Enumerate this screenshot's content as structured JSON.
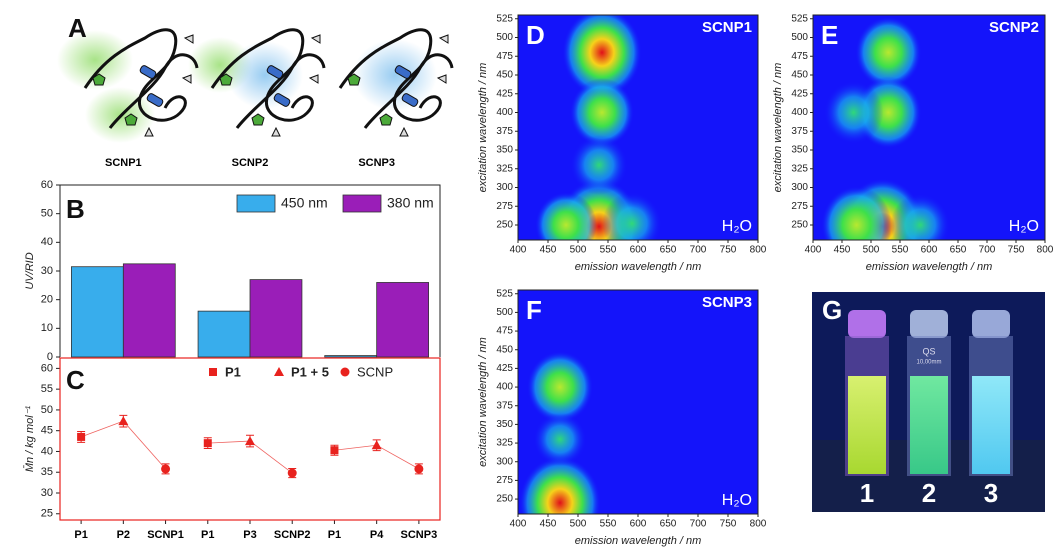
{
  "panel_a": {
    "label": "A"
  },
  "chart_data": [
    {
      "type": "bar",
      "panel": "B",
      "ylabel": "UV/RID",
      "categories": [
        "SCNP1",
        "SCNP2",
        "SCNP3"
      ],
      "series": [
        {
          "name": "450 nm",
          "color": "#38adec",
          "values": [
            31.5,
            16,
            0.5
          ]
        },
        {
          "name": "380 nm",
          "color": "#9a1eb8",
          "values": [
            32.5,
            27,
            26
          ]
        }
      ],
      "ylim": [
        0,
        60
      ],
      "yticks": [
        0,
        10,
        20,
        30,
        40,
        50,
        60
      ],
      "legend": "top-right"
    },
    {
      "type": "errorscatter",
      "panel": "C",
      "ylabel": "M̄n / kg mol⁻¹",
      "color": "#e8221e",
      "categories": [
        "P1",
        "P2",
        "SCNP1",
        "P1",
        "P3",
        "SCNP2",
        "P1",
        "P4",
        "SCNP3"
      ],
      "series": [
        {
          "name": "P1",
          "marker": "square",
          "values": [
            43.5,
            null,
            null,
            42,
            null,
            null,
            40.3,
            null,
            null
          ],
          "errors": [
            1.3,
            null,
            null,
            1.3,
            null,
            null,
            1.2,
            null,
            null
          ]
        },
        {
          "name": "P1 + 5",
          "marker": "triangle",
          "values": [
            null,
            47.3,
            null,
            null,
            42.5,
            null,
            null,
            41.5,
            null
          ],
          "errors": [
            null,
            1.4,
            null,
            null,
            1.4,
            null,
            null,
            1.3,
            null
          ]
        },
        {
          "name": "SCNP",
          "marker": "circle",
          "values": [
            null,
            null,
            35.8,
            null,
            null,
            34.8,
            null,
            null,
            35.8
          ],
          "errors": [
            null,
            null,
            1.2,
            null,
            null,
            1.1,
            null,
            null,
            1.2
          ]
        }
      ],
      "ylim": [
        23.5,
        62.5
      ],
      "yticks": [
        25,
        30,
        35,
        40,
        45,
        50,
        55,
        60
      ],
      "legend": "top"
    },
    {
      "type": "heatmap",
      "panel": "D",
      "title": "SCNP1",
      "annotation": "H₂O",
      "xlabel": "emission wavelength / nm",
      "ylabel": "excitation wavelength / nm",
      "xlim": [
        400,
        800
      ],
      "xticks": [
        400,
        450,
        500,
        550,
        600,
        650,
        700,
        750,
        800
      ],
      "ylim": [
        230,
        530
      ],
      "yticks": [
        250,
        275,
        300,
        325,
        350,
        375,
        400,
        425,
        450,
        475,
        500,
        525
      ],
      "peaks": {
        "x": [
          540,
          540,
          535,
          480,
          590,
          535
        ],
        "y": [
          480,
          400,
          248,
          250,
          252,
          330
        ],
        "intensity": [
          0.9,
          0.55,
          1,
          0.5,
          0.45,
          0.4
        ]
      }
    },
    {
      "type": "heatmap",
      "panel": "E",
      "title": "SCNP2",
      "annotation": "H₂O",
      "xlabel": "emission wavelength / nm",
      "ylabel": "excitation wavelength / nm",
      "xlim": [
        400,
        800
      ],
      "xticks": [
        400,
        450,
        500,
        550,
        600,
        650,
        700,
        750,
        800
      ],
      "ylim": [
        230,
        530
      ],
      "yticks": [
        250,
        275,
        300,
        325,
        350,
        375,
        400,
        425,
        450,
        475,
        500,
        525
      ],
      "peaks": {
        "x": [
          530,
          530,
          470,
          520,
          475,
          585
        ],
        "y": [
          480,
          400,
          400,
          248,
          250,
          250
        ],
        "intensity": [
          0.6,
          0.6,
          0.45,
          1,
          0.7,
          0.45
        ]
      }
    },
    {
      "type": "heatmap",
      "panel": "F",
      "title": "SCNP3",
      "annotation": "H₂O",
      "xlabel": "emission wavelength / nm",
      "ylabel": "excitation wavelength / nm",
      "xlim": [
        400,
        800
      ],
      "xticks": [
        400,
        450,
        500,
        550,
        600,
        650,
        700,
        750,
        800
      ],
      "ylim": [
        230,
        530
      ],
      "yticks": [
        250,
        275,
        300,
        325,
        350,
        375,
        400,
        425,
        450,
        475,
        500,
        525
      ],
      "peaks": {
        "x": [
          470,
          470,
          470
        ],
        "y": [
          400,
          245,
          330
        ],
        "intensity": [
          0.6,
          0.95,
          0.3
        ]
      }
    }
  ],
  "panel_g": {
    "label": "G",
    "samples": [
      "1",
      "2",
      "3"
    ],
    "cuvette_text": [
      "QS",
      "10,00mm"
    ]
  }
}
